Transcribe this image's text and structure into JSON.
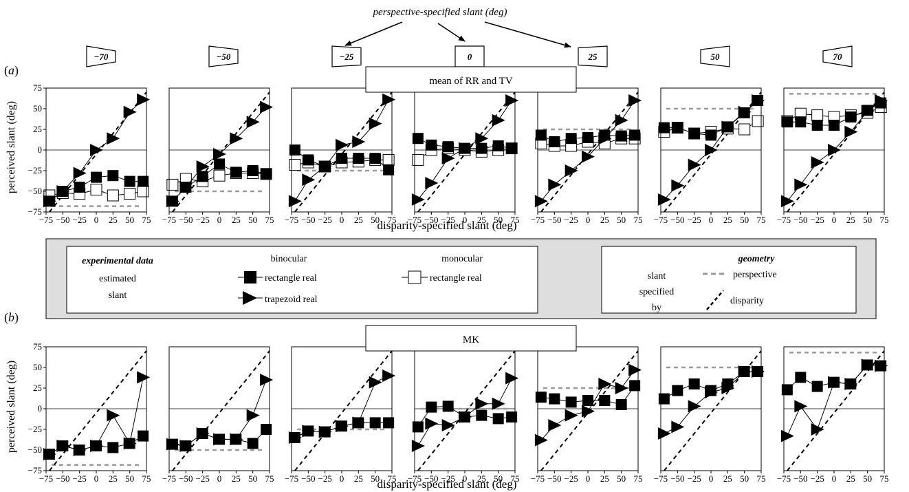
{
  "header": {
    "persp_title": "perspective-specified slant (deg)",
    "thumb_labels": [
      "−70",
      "−50",
      "−25",
      "0",
      "25",
      "50",
      "70"
    ]
  },
  "legend": {
    "experimental_title": "experimental data",
    "estimated_slant": [
      "estimated",
      "slant"
    ],
    "binocular": "binocular",
    "monocular": "monocular",
    "rect_real_bin": "rectangle real",
    "rect_real_mono": "rectangle real",
    "trapezoid_real": "trapezoid real",
    "geometry_title": "geometry",
    "specified_by": [
      "slant",
      "specified",
      "by"
    ],
    "perspective": "perspective",
    "disparity": "disparity"
  },
  "colors": {
    "background": "#ffffff",
    "legend_band": "#dedede",
    "perspective_line": "#9a9a9a",
    "marker_fill": "#000000",
    "open_marker_fill": "#ffffff"
  },
  "chart_data": [
    {
      "type": "line",
      "panel": "(a)",
      "subject_label": "mean of RR and TV",
      "ylabel": "perceived slant (deg)",
      "xlabel": "disparity-specified slant (deg)",
      "xlim": [
        -75,
        75
      ],
      "ylim": [
        -75,
        75
      ],
      "xticks": [
        "−75",
        "−50",
        "−25",
        "0",
        "25",
        "50",
        "75"
      ],
      "yticks": [
        "75",
        "50",
        "25",
        "0",
        "−25",
        "−50",
        "−75"
      ],
      "subplots": [
        {
          "perspective_slant": -70,
          "series": [
            {
              "type": "binocular_rect",
              "x": [
                -70,
                -50,
                -25,
                0,
                25,
                50,
                70
              ],
              "y": [
                -62,
                -50,
                -45,
                -33,
                -31,
                -38,
                -38
              ]
            },
            {
              "type": "monocular_rect",
              "x": [
                -70,
                -50,
                -25,
                0,
                25,
                50,
                70
              ],
              "y": [
                -55,
                -52,
                -53,
                -48,
                -55,
                -53,
                -50
              ]
            },
            {
              "type": "binocular_trap",
              "x": [
                -70,
                -50,
                -25,
                0,
                25,
                50,
                70
              ],
              "y": [
                -62,
                -50,
                -28,
                0,
                14,
                46,
                61
              ]
            }
          ]
        },
        {
          "perspective_slant": -50,
          "series": [
            {
              "type": "binocular_rect",
              "x": [
                -70,
                -50,
                -25,
                0,
                25,
                50,
                70
              ],
              "y": [
                -62,
                -45,
                -32,
                -17,
                -27,
                -25,
                -29
              ]
            },
            {
              "type": "monocular_rect",
              "x": [
                -70,
                -50,
                -25,
                0,
                25,
                50,
                70
              ],
              "y": [
                -42,
                -35,
                -38,
                -31,
                -28,
                -28,
                -29
              ]
            },
            {
              "type": "binocular_trap",
              "x": [
                -70,
                -50,
                -25,
                0,
                25,
                50,
                70
              ],
              "y": [
                -62,
                -45,
                -20,
                -5,
                14,
                34,
                52
              ]
            }
          ]
        },
        {
          "perspective_slant": -25,
          "series": [
            {
              "type": "binocular_rect",
              "x": [
                -70,
                -50,
                -25,
                0,
                25,
                50,
                70
              ],
              "y": [
                0,
                -12,
                -20,
                -10,
                -10,
                -10,
                -24
              ]
            },
            {
              "type": "monocular_rect",
              "x": [
                -70,
                -50,
                -25,
                0,
                25,
                50,
                70
              ],
              "y": [
                -18,
                -15,
                -20,
                -15,
                -14,
                -12,
                -12
              ]
            },
            {
              "type": "binocular_trap",
              "x": [
                -70,
                -50,
                -25,
                0,
                25,
                50,
                70
              ],
              "y": [
                -62,
                -36,
                -20,
                6,
                10,
                32,
                61
              ]
            }
          ]
        },
        {
          "perspective_slant": 0,
          "series": [
            {
              "type": "binocular_rect",
              "x": [
                -70,
                -50,
                -25,
                0,
                25,
                50,
                70
              ],
              "y": [
                14,
                6,
                4,
                2,
                2,
                5,
                2
              ]
            },
            {
              "type": "monocular_rect",
              "x": [
                -70,
                -50,
                -25,
                0,
                25,
                50,
                70
              ],
              "y": [
                -12,
                0,
                2,
                0,
                -2,
                0,
                2
              ]
            },
            {
              "type": "binocular_trap",
              "x": [
                -70,
                -50,
                -25,
                0,
                25,
                50,
                70
              ],
              "y": [
                -60,
                -40,
                -10,
                2,
                14,
                36,
                60
              ]
            }
          ]
        },
        {
          "perspective_slant": 25,
          "series": [
            {
              "type": "binocular_rect",
              "x": [
                -70,
                -50,
                -25,
                0,
                25,
                50,
                70
              ],
              "y": [
                18,
                10,
                14,
                15,
                18,
                17,
                18
              ]
            },
            {
              "type": "monocular_rect",
              "x": [
                -70,
                -50,
                -25,
                0,
                25,
                50,
                70
              ],
              "y": [
                8,
                5,
                5,
                10,
                8,
                14,
                14
              ]
            },
            {
              "type": "binocular_trap",
              "x": [
                -70,
                -50,
                -25,
                0,
                25,
                50,
                70
              ],
              "y": [
                -62,
                -42,
                -25,
                -8,
                14,
                36,
                60
              ]
            }
          ]
        },
        {
          "perspective_slant": 50,
          "series": [
            {
              "type": "binocular_rect",
              "x": [
                -70,
                -50,
                -25,
                0,
                25,
                50,
                70
              ],
              "y": [
                27,
                27,
                20,
                18,
                28,
                45,
                60
              ]
            },
            {
              "type": "monocular_rect",
              "x": [
                -70,
                -50,
                -25,
                0,
                25,
                50,
                70
              ],
              "y": [
                22,
                27,
                20,
                22,
                26,
                25,
                35
              ]
            },
            {
              "type": "binocular_trap",
              "x": [
                -70,
                -50,
                -25,
                0,
                25,
                50,
                70
              ],
              "y": [
                -60,
                -43,
                -18,
                0,
                28,
                46,
                60
              ]
            }
          ]
        },
        {
          "perspective_slant": 70,
          "series": [
            {
              "type": "binocular_rect",
              "x": [
                -70,
                -50,
                -25,
                0,
                25,
                50,
                70
              ],
              "y": [
                34,
                34,
                30,
                30,
                40,
                48,
                57
              ]
            },
            {
              "type": "monocular_rect",
              "x": [
                -70,
                -50,
                -25,
                0,
                25,
                50,
                70
              ],
              "y": [
                35,
                44,
                42,
                40,
                42,
                45,
                52
              ]
            },
            {
              "type": "binocular_trap",
              "x": [
                -70,
                -50,
                -25,
                0,
                25,
                50,
                70
              ],
              "y": [
                -62,
                -42,
                -15,
                0,
                22,
                47,
                60
              ]
            }
          ]
        }
      ]
    },
    {
      "type": "line",
      "panel": "(b)",
      "subject_label": "MK",
      "ylabel": "perceived slant (deg)",
      "xlabel": "disparity-specified slant (deg)",
      "xlim": [
        -75,
        75
      ],
      "ylim": [
        -75,
        75
      ],
      "xticks": [
        "−75",
        "−50",
        "−25",
        "0",
        "25",
        "50",
        "75"
      ],
      "yticks": [
        "75",
        "50",
        "25",
        "0",
        "−25",
        "−50",
        "−75"
      ],
      "subplots": [
        {
          "perspective_slant": -70,
          "series": [
            {
              "type": "binocular_rect",
              "x": [
                -70,
                -50,
                -25,
                0,
                25,
                50,
                70
              ],
              "y": [
                -55,
                -45,
                -50,
                -45,
                -47,
                -42,
                -33
              ]
            },
            {
              "type": "binocular_trap",
              "x": [
                -70,
                -50,
                -25,
                0,
                25,
                50,
                70
              ],
              "y": [
                -55,
                -45,
                -50,
                -45,
                -8,
                -42,
                38
              ]
            }
          ]
        },
        {
          "perspective_slant": -50,
          "series": [
            {
              "type": "binocular_rect",
              "x": [
                -70,
                -50,
                -25,
                0,
                25,
                50,
                70
              ],
              "y": [
                -43,
                -45,
                -30,
                -37,
                -37,
                -42,
                -25
              ]
            },
            {
              "type": "binocular_trap",
              "x": [
                -70,
                -50,
                -25,
                0,
                25,
                50,
                70
              ],
              "y": [
                -43,
                -45,
                -30,
                -37,
                -37,
                -8,
                35
              ]
            }
          ]
        },
        {
          "perspective_slant": -25,
          "series": [
            {
              "type": "binocular_rect",
              "x": [
                -70,
                -50,
                -25,
                0,
                25,
                50,
                70
              ],
              "y": [
                -35,
                -27,
                -28,
                -21,
                -17,
                -17,
                -17
              ]
            },
            {
              "type": "binocular_trap",
              "x": [
                -70,
                -50,
                -25,
                0,
                25,
                50,
                70
              ],
              "y": [
                -35,
                -27,
                -28,
                -21,
                -17,
                32,
                40
              ]
            }
          ]
        },
        {
          "perspective_slant": 0,
          "series": [
            {
              "type": "binocular_rect",
              "x": [
                -70,
                -50,
                -25,
                0,
                25,
                50,
                70
              ],
              "y": [
                -22,
                2,
                3,
                -10,
                -8,
                -12,
                -10
              ]
            },
            {
              "type": "binocular_trap",
              "x": [
                -70,
                -50,
                -25,
                0,
                25,
                50,
                70
              ],
              "y": [
                -45,
                -18,
                -20,
                -10,
                6,
                6,
                37
              ]
            }
          ]
        },
        {
          "perspective_slant": 25,
          "series": [
            {
              "type": "binocular_rect",
              "x": [
                -70,
                -50,
                -25,
                0,
                25,
                50,
                70
              ],
              "y": [
                14,
                12,
                8,
                10,
                10,
                5,
                28
              ]
            },
            {
              "type": "binocular_trap",
              "x": [
                -70,
                -50,
                -25,
                0,
                25,
                50,
                70
              ],
              "y": [
                -38,
                -20,
                -8,
                -3,
                30,
                25,
                47
              ]
            }
          ]
        },
        {
          "perspective_slant": 50,
          "series": [
            {
              "type": "binocular_rect",
              "x": [
                -70,
                -50,
                -25,
                0,
                25,
                50,
                70
              ],
              "y": [
                12,
                22,
                30,
                22,
                30,
                45,
                45
              ]
            },
            {
              "type": "binocular_trap",
              "x": [
                -70,
                -50,
                -25,
                0,
                25,
                50,
                70
              ],
              "y": [
                -30,
                -22,
                3,
                20,
                25,
                45,
                45
              ]
            }
          ]
        },
        {
          "perspective_slant": 70,
          "series": [
            {
              "type": "binocular_rect",
              "x": [
                -70,
                -50,
                -25,
                0,
                25,
                50,
                70
              ],
              "y": [
                23,
                38,
                27,
                32,
                30,
                53,
                52
              ]
            },
            {
              "type": "binocular_trap",
              "x": [
                -70,
                -50,
                -25,
                0,
                25,
                50,
                70
              ],
              "y": [
                -33,
                3,
                -25,
                32,
                30,
                53,
                52
              ]
            }
          ]
        }
      ]
    }
  ]
}
